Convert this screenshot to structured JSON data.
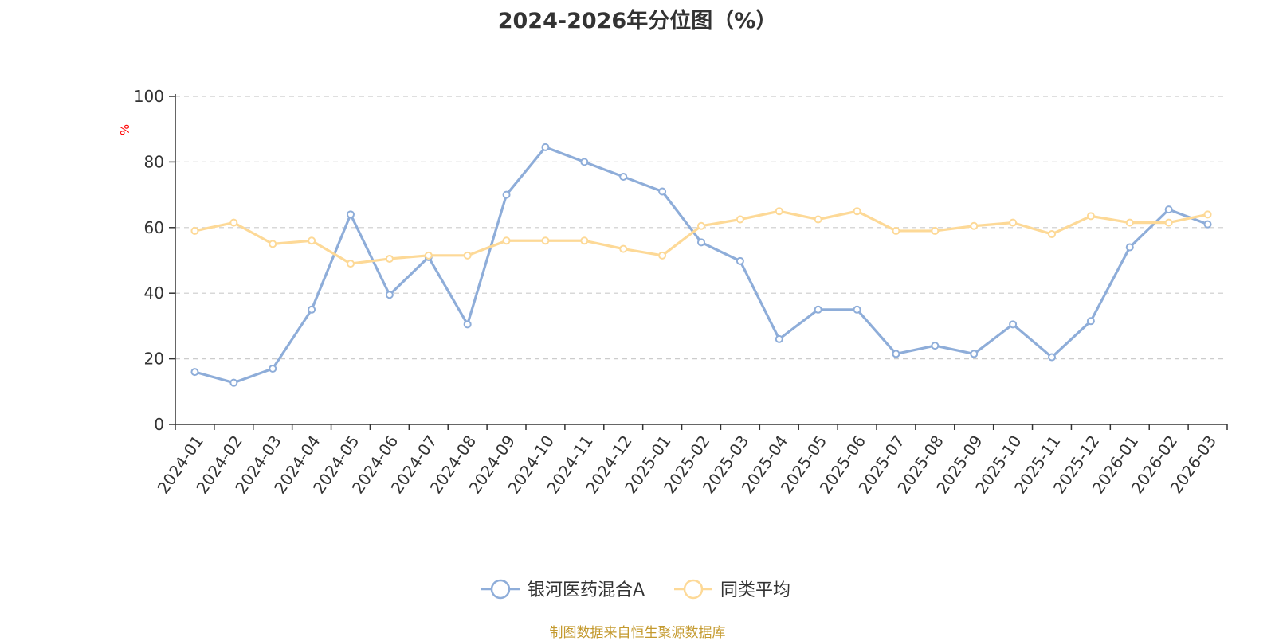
{
  "chart_data": {
    "type": "line",
    "title": "2024-2026年分位图（%）",
    "ylabel": "%",
    "xlabel": "",
    "ylim": [
      0,
      100
    ],
    "yticks": [
      0,
      20,
      40,
      60,
      80,
      100
    ],
    "grid": true,
    "legend_position": "bottom-center",
    "categories": [
      "2024-01",
      "2024-02",
      "2024-03",
      "2024-04",
      "2024-05",
      "2024-06",
      "2024-07",
      "2024-08",
      "2024-09",
      "2024-10",
      "2024-11",
      "2024-12",
      "2025-01",
      "2025-02",
      "2025-03",
      "2025-04",
      "2025-05",
      "2025-06",
      "2025-07",
      "2025-08",
      "2025-09",
      "2025-10",
      "2025-11",
      "2025-12",
      "2026-01",
      "2026-02",
      "2026-03"
    ],
    "series": [
      {
        "name": "银河医药混合A",
        "color": "#8eadd9",
        "values": [
          16,
          12.7,
          17,
          35,
          64,
          39.5,
          51,
          30.5,
          70,
          84.5,
          80,
          75.5,
          71,
          55.5,
          49.8,
          26,
          35,
          35,
          21.5,
          24,
          21.5,
          30.5,
          20.5,
          31.5,
          54,
          65.5,
          61
        ]
      },
      {
        "name": "同类平均",
        "color": "#fdd997",
        "values": [
          59,
          61.5,
          55,
          56,
          49,
          50.5,
          51.5,
          51.5,
          56,
          56,
          56,
          53.5,
          51.5,
          60.5,
          62.5,
          65,
          62.5,
          65,
          59,
          59,
          60.5,
          61.5,
          58,
          63.5,
          61.5,
          61.5,
          64
        ]
      }
    ]
  },
  "source_note": "制图数据来自恒生聚源数据库",
  "colors": {
    "axis": "#333333",
    "grid": "#cccccc",
    "ylabel": "#ff0000",
    "source": "#c49a2f"
  }
}
